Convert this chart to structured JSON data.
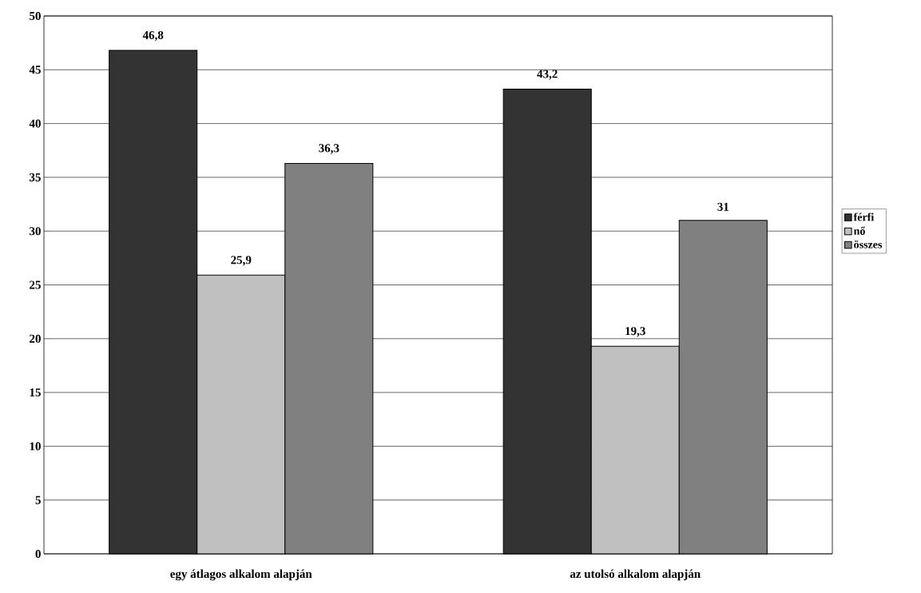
{
  "chart_data": {
    "type": "bar",
    "categories": [
      "egy átlagos alkalom alapján",
      "az utolsó alkalom alapján"
    ],
    "series": [
      {
        "name": "férfi",
        "color": "#333333",
        "values": [
          46.8,
          43.2
        ],
        "value_labels": [
          "46,8",
          "43,2"
        ]
      },
      {
        "name": "nő",
        "color": "#c0c0c0",
        "values": [
          25.9,
          19.3
        ],
        "value_labels": [
          "25,9",
          "19,3"
        ]
      },
      {
        "name": "összes",
        "color": "#808080",
        "values": [
          36.3,
          31
        ],
        "value_labels": [
          "36,3",
          "31"
        ]
      }
    ],
    "ylim": [
      0,
      50
    ],
    "yticks": [
      0,
      5,
      10,
      15,
      20,
      25,
      30,
      35,
      40,
      45,
      50
    ],
    "grid": "y",
    "legend": "right"
  }
}
